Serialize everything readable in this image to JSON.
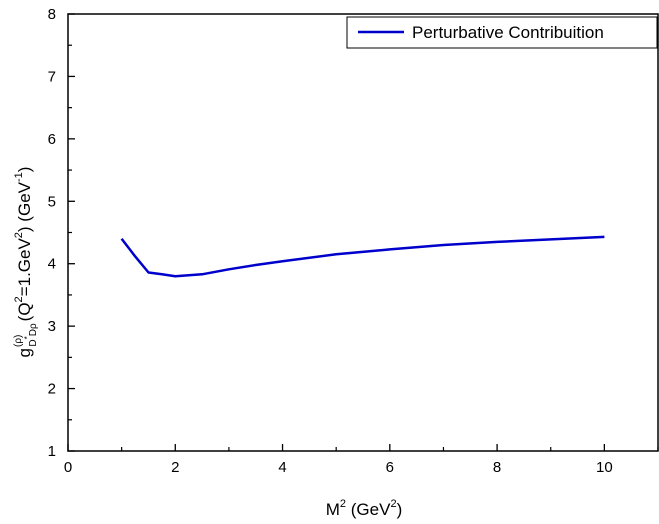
{
  "chart_data": {
    "type": "line",
    "xlim": [
      0,
      11
    ],
    "ylim": [
      1,
      8
    ],
    "x_ticks": [
      0,
      2,
      4,
      6,
      8,
      10
    ],
    "y_ticks": [
      1,
      2,
      3,
      4,
      5,
      6,
      7,
      8
    ],
    "x_tick_labels": [
      "0",
      "2",
      "4",
      "6",
      "8",
      "10"
    ],
    "y_tick_labels": [
      "1",
      "2",
      "3",
      "4",
      "5",
      "6",
      "7",
      "8"
    ],
    "grid": false,
    "legend_position": "top-right",
    "xlabel": {
      "main": "M",
      "sup1": "2",
      "rest1": " (GeV",
      "sup2": "2",
      "rest2": ")"
    },
    "ylabel": {
      "g": "g",
      "sup_rho": "(ρ)",
      "sub": "D",
      "sub_star": "*",
      "sub2": "Dρ",
      "paren": "(Q",
      "sup_q": "2",
      "mid": "=1.GeV",
      "sup_gev": "2",
      "close": ") (GeV",
      "sup_inv": "-1",
      "end": ")"
    },
    "series": [
      {
        "name": "Perturbative Contribuition",
        "color": "#0000cc",
        "x": [
          1.0,
          1.25,
          1.5,
          1.75,
          2.0,
          2.5,
          3.0,
          3.5,
          4.0,
          5.0,
          6.0,
          7.0,
          8.0,
          9.0,
          10.0
        ],
        "y": [
          4.4,
          4.12,
          3.86,
          3.83,
          3.8,
          3.83,
          3.91,
          3.98,
          4.04,
          4.15,
          4.23,
          4.3,
          4.35,
          4.39,
          4.43
        ]
      }
    ]
  }
}
